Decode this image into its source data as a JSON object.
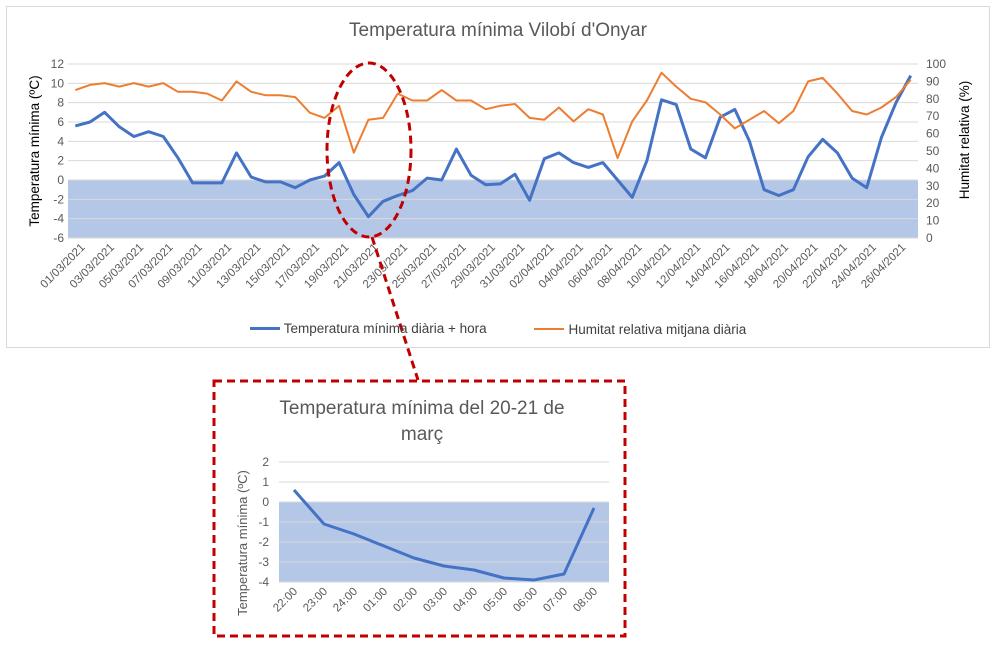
{
  "main_chart": {
    "title": "Temperatura  mínima Vilobí d'Onyar",
    "ylabel_left": "Temperatura mínima (ºC)",
    "ylabel_right": "Humitat relativa (%)",
    "legend_temp": "Temperatura mínima diària + hora",
    "legend_hum": "Humitat relativa mitjana diària"
  },
  "zoom_chart": {
    "title_line1": "Temperatura  mínima del 20-21 de",
    "title_line2": "març",
    "ylabel": "Temperatura mínima (ºC)"
  },
  "colors": {
    "temperature": "#4472c4",
    "humidity": "#ed7d31",
    "below_zero_band": "#b4c7e7",
    "annotation": "#c00000"
  },
  "chart_data": [
    {
      "type": "line",
      "title": "Temperatura  mínima Vilobí d'Onyar",
      "x_tick_labels": [
        "01/03/2021",
        "03/03/2021",
        "05/03/2021",
        "07/03/2021",
        "09/03/2021",
        "11/03/2021",
        "13/03/2021",
        "15/03/2021",
        "17/03/2021",
        "19/03/2021",
        "21/03/2021",
        "23/03/2021",
        "25/03/2021",
        "27/03/2021",
        "29/03/2021",
        "31/03/2021",
        "02/04/2021",
        "04/04/2021",
        "06/04/2021",
        "08/04/2021",
        "10/04/2021",
        "12/04/2021",
        "14/04/2021",
        "16/04/2021",
        "18/04/2021",
        "20/04/2021",
        "22/04/2021",
        "24/04/2021",
        "26/04/2021"
      ],
      "ylabel": "Temperatura mínima (ºC)",
      "y2label": "Humitat relativa (%)",
      "ylim": [
        -6,
        12
      ],
      "yticks": [
        -6,
        -4,
        -2,
        0,
        2,
        4,
        6,
        8,
        10,
        12
      ],
      "y2lim": [
        0,
        100
      ],
      "y2ticks": [
        0,
        10,
        20,
        30,
        40,
        50,
        60,
        70,
        80,
        90,
        100
      ],
      "legend_position": "bottom",
      "shaded_band": {
        "axis": "y",
        "from": -6,
        "to": 0
      },
      "series": [
        {
          "name": "Temperatura mínima diària + hora",
          "axis": "left",
          "values": [
            5.6,
            6.0,
            7.0,
            5.5,
            4.5,
            5.0,
            4.5,
            2.3,
            -0.3,
            -0.3,
            -0.3,
            2.8,
            0.3,
            -0.2,
            -0.2,
            -0.8,
            0.0,
            0.4,
            1.8,
            -1.5,
            -3.8,
            -2.2,
            -1.6,
            -1.1,
            0.2,
            0.0,
            3.2,
            0.5,
            -0.5,
            -0.4,
            0.6,
            -2.1,
            2.2,
            2.8,
            1.8,
            1.3,
            1.8,
            0.0,
            -1.8,
            2.0,
            8.3,
            7.8,
            3.2,
            2.3,
            6.5,
            7.3,
            4.0,
            -1.0,
            -1.6,
            -1.0,
            2.4,
            4.2,
            2.8,
            0.2,
            -0.8,
            4.4,
            8.0,
            10.8
          ]
        },
        {
          "name": "Humitat relativa mitjana diària",
          "axis": "right",
          "values": [
            85,
            88,
            89,
            87,
            89,
            87,
            89,
            84,
            84,
            83,
            79,
            90,
            84,
            82,
            82,
            81,
            72,
            69,
            76,
            49,
            68,
            69,
            83,
            79,
            79,
            85,
            79,
            79,
            74,
            76,
            77,
            69,
            68,
            75,
            67,
            74,
            71,
            46,
            67,
            79,
            95,
            87,
            80,
            78,
            71,
            63,
            68,
            73,
            66,
            73,
            90,
            92,
            83,
            73,
            71,
            75,
            81,
            91
          ]
        }
      ]
    },
    {
      "type": "line",
      "title": "Temperatura  mínima del 20-21 de març",
      "categories": [
        "22:00",
        "23:00",
        "24:00",
        "01:00",
        "02:00",
        "03:00",
        "04:00",
        "05:00",
        "06:00",
        "07:00",
        "08:00"
      ],
      "ylabel": "Temperatura mínima (ºC)",
      "ylim": [
        -4,
        2
      ],
      "yticks": [
        -4,
        -3,
        -2,
        -1,
        0,
        1,
        2
      ],
      "shaded_band": {
        "axis": "y",
        "from": -4,
        "to": 0
      },
      "series": [
        {
          "name": "",
          "values": [
            0.6,
            -1.1,
            -1.6,
            -2.2,
            -2.8,
            -3.2,
            -3.4,
            -3.8,
            -3.9,
            -3.6,
            -0.3
          ]
        }
      ]
    }
  ]
}
